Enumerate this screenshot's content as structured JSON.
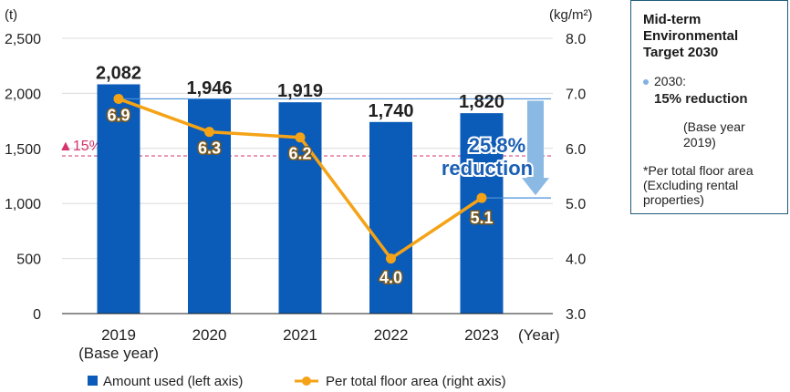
{
  "chart_data": {
    "type": "bar+line",
    "left_axis": {
      "unit": "(t)",
      "ylim": [
        0,
        2500
      ],
      "ticks": [
        "0",
        "500",
        "1,000",
        "1,500",
        "2,000",
        "2,500"
      ]
    },
    "right_axis": {
      "unit": "(kg/m²)",
      "ylim": [
        3.0,
        8.0
      ],
      "ticks": [
        "3.0",
        "4.0",
        "5.0",
        "6.0",
        "7.0",
        "8.0"
      ]
    },
    "x_unit": "(Year)",
    "categories": [
      {
        "label": "2019",
        "sublabel": "(Base year)"
      },
      {
        "label": "2020",
        "sublabel": ""
      },
      {
        "label": "2021",
        "sublabel": ""
      },
      {
        "label": "2022",
        "sublabel": ""
      },
      {
        "label": "2023",
        "sublabel": ""
      }
    ],
    "series": [
      {
        "name": "Amount used (left axis)",
        "type": "bar",
        "axis": "left",
        "color": "#0b5cb8",
        "values": [
          2082,
          1946,
          1919,
          1740,
          1820
        ],
        "labels": [
          "2,082",
          "1,946",
          "1,919",
          "1,740",
          "1,820"
        ]
      },
      {
        "name": "Per total floor area (right axis)",
        "type": "line",
        "axis": "right",
        "color": "#f5a316",
        "values": [
          6.9,
          6.3,
          6.2,
          4.0,
          5.1
        ],
        "labels": [
          "6.9",
          "6.3",
          "6.2",
          "4.0",
          "5.1"
        ]
      }
    ],
    "target_line": {
      "label": "▲15%",
      "value": 5.865,
      "axis": "right",
      "color": "#d6336c"
    },
    "reduction": {
      "text_line1": "25.8%",
      "text_line2": "reduction",
      "from": 6.9,
      "to": 5.1
    },
    "grid": true,
    "legend_position": "bottom"
  },
  "target_box": {
    "title": "Mid-term\nEnvironmental\nTarget 2030",
    "item_year": "2030:",
    "item_value": "15% reduction",
    "base": "(Base year 2019)",
    "note": "*Per total floor area\n(Excluding rental\nproperties)"
  }
}
